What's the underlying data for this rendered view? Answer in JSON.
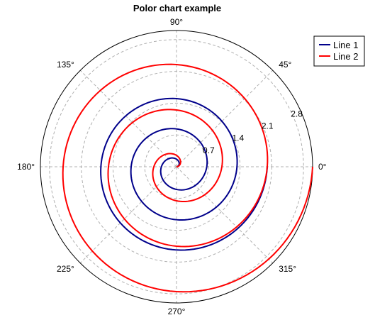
{
  "chart_data": {
    "type": "line",
    "subtype": "polar",
    "title": "Polor chart example",
    "radial_ticks": [
      0.7,
      1.4,
      2.1,
      2.8
    ],
    "radial_tick_labels": [
      "0.7",
      "1.4",
      "2.1",
      "2.8"
    ],
    "angle_ticks": [
      0,
      45,
      90,
      135,
      180,
      225,
      270,
      315
    ],
    "angle_tick_labels": [
      "0°",
      "45°",
      "90°",
      "135°",
      "180°",
      "225°",
      "270°",
      "315°"
    ],
    "rmax": 3.0,
    "grid": true,
    "legend": "top-right",
    "series": [
      {
        "name": "Line 1",
        "color": "#00008b",
        "theta_degrees": [
          0,
          90,
          180,
          270,
          360,
          450,
          540,
          630,
          720,
          810,
          900,
          990,
          1080
        ],
        "r": [
          0.0,
          0.167,
          0.333,
          0.5,
          0.667,
          0.833,
          1.0,
          1.167,
          1.333,
          1.5,
          1.667,
          1.833,
          2.0
        ]
      },
      {
        "name": "Line 2",
        "color": "#ff0000",
        "theta_degrees": [
          0,
          90,
          180,
          270,
          360,
          450,
          540,
          630,
          720,
          810,
          900,
          990,
          1080
        ],
        "r": [
          0.0,
          0.25,
          0.5,
          0.75,
          1.0,
          1.25,
          1.5,
          1.75,
          2.0,
          2.25,
          2.5,
          2.75,
          3.0
        ]
      }
    ]
  }
}
